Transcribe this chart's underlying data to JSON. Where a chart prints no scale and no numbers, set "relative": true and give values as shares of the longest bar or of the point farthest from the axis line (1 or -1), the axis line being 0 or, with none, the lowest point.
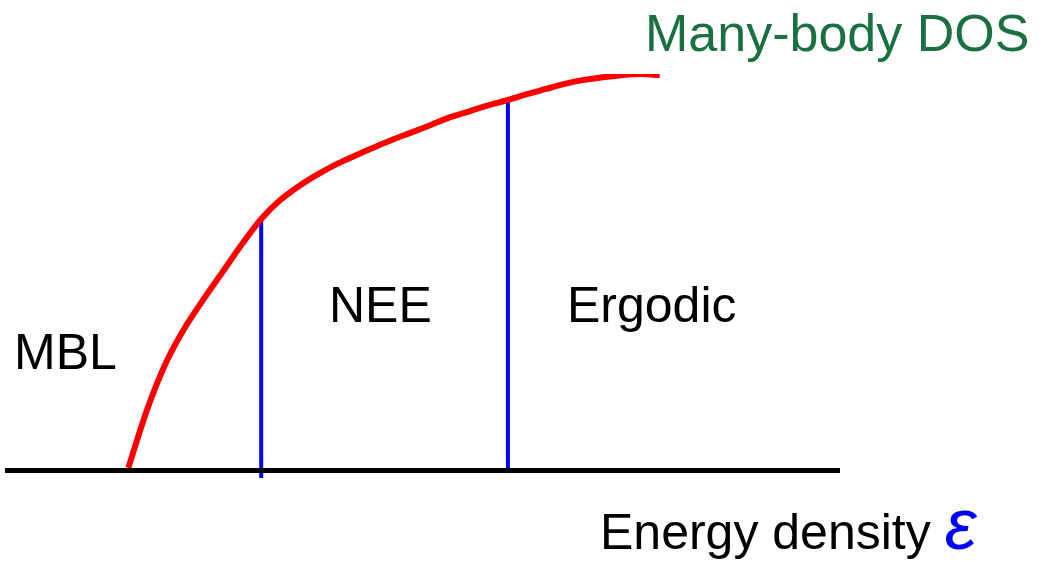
{
  "chart_data": {
    "type": "line",
    "relative": true,
    "line_style": "solid",
    "xlabel": "Energy density ε",
    "ylabel": "Many-body DOS",
    "annotations": [
      "MBL",
      "NEE",
      "Ergodic"
    ],
    "categories": [
      null,
      null,
      null,
      null,
      null,
      null,
      null,
      null,
      null,
      null,
      null,
      null,
      null,
      null,
      null,
      null,
      null,
      null,
      null,
      null,
      null,
      null,
      null,
      null,
      null,
      null,
      null,
      null,
      null,
      null,
      null,
      null,
      null,
      null,
      null,
      null,
      null,
      null,
      null,
      null,
      null,
      null,
      null,
      null
    ],
    "series": [
      {
        "color": "#ff0000",
        "values": [
          null,
          null,
          null,
          null,
          null,
          null,
          0,
          0.15,
          0.269,
          0.358,
          0.431,
          0.5,
          0.569,
          0.632,
          0.68,
          0.716,
          0.746,
          0.772,
          0.794,
          0.815,
          0.835,
          0.853,
          0.872,
          0.891,
          0.906,
          0.921,
          0.934,
          0.949,
          0.962,
          0.975,
          0.985,
          0.992,
          0.997,
          1,
          0.997,
          null,
          null,
          null,
          null,
          null,
          null,
          null,
          null,
          null
        ]
      }
    ]
  }
}
